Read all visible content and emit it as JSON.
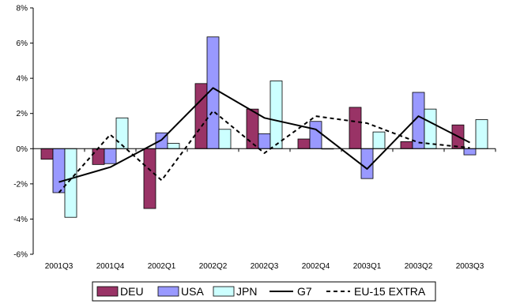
{
  "chart_data": {
    "type": "bar",
    "categories": [
      "2001Q3",
      "2001Q4",
      "2002Q1",
      "2002Q2",
      "2002Q3",
      "2002Q4",
      "2003Q1",
      "2003Q2",
      "2003Q3"
    ],
    "ylim": [
      -6,
      8
    ],
    "yticks": [
      -6,
      -4,
      -2,
      0,
      2,
      4,
      6,
      8
    ],
    "ytick_labels": [
      "-6%",
      "-4%",
      "-2%",
      "0%",
      "2%",
      "4%",
      "6%",
      "8%"
    ],
    "grid": false,
    "legend_position": "bottom",
    "series": [
      {
        "name": "DEU",
        "kind": "bar",
        "color": "#993366",
        "values": [
          -0.6,
          -0.9,
          -3.4,
          3.7,
          2.25,
          0.55,
          2.35,
          0.4,
          1.35
        ]
      },
      {
        "name": "USA",
        "kind": "bar",
        "color": "#9999FF",
        "values": [
          -2.5,
          -0.85,
          0.9,
          6.35,
          0.85,
          1.55,
          -1.7,
          3.2,
          -0.35
        ]
      },
      {
        "name": "JPN",
        "kind": "bar",
        "color": "#CCFFFF",
        "values": [
          -3.9,
          1.75,
          0.3,
          1.1,
          3.85,
          0.0,
          0.95,
          2.25,
          1.65
        ]
      },
      {
        "name": "G7",
        "kind": "line",
        "style": "solid",
        "color": "#000000",
        "values": [
          -1.9,
          -1.05,
          0.5,
          3.45,
          1.75,
          1.1,
          -1.15,
          1.85,
          0.35
        ]
      },
      {
        "name": "EU-15 EXTRA",
        "kind": "line",
        "style": "dashed",
        "color": "#000000",
        "values": [
          -2.5,
          0.8,
          -1.8,
          2.15,
          -0.25,
          1.85,
          1.45,
          0.35,
          0.05
        ]
      }
    ]
  }
}
